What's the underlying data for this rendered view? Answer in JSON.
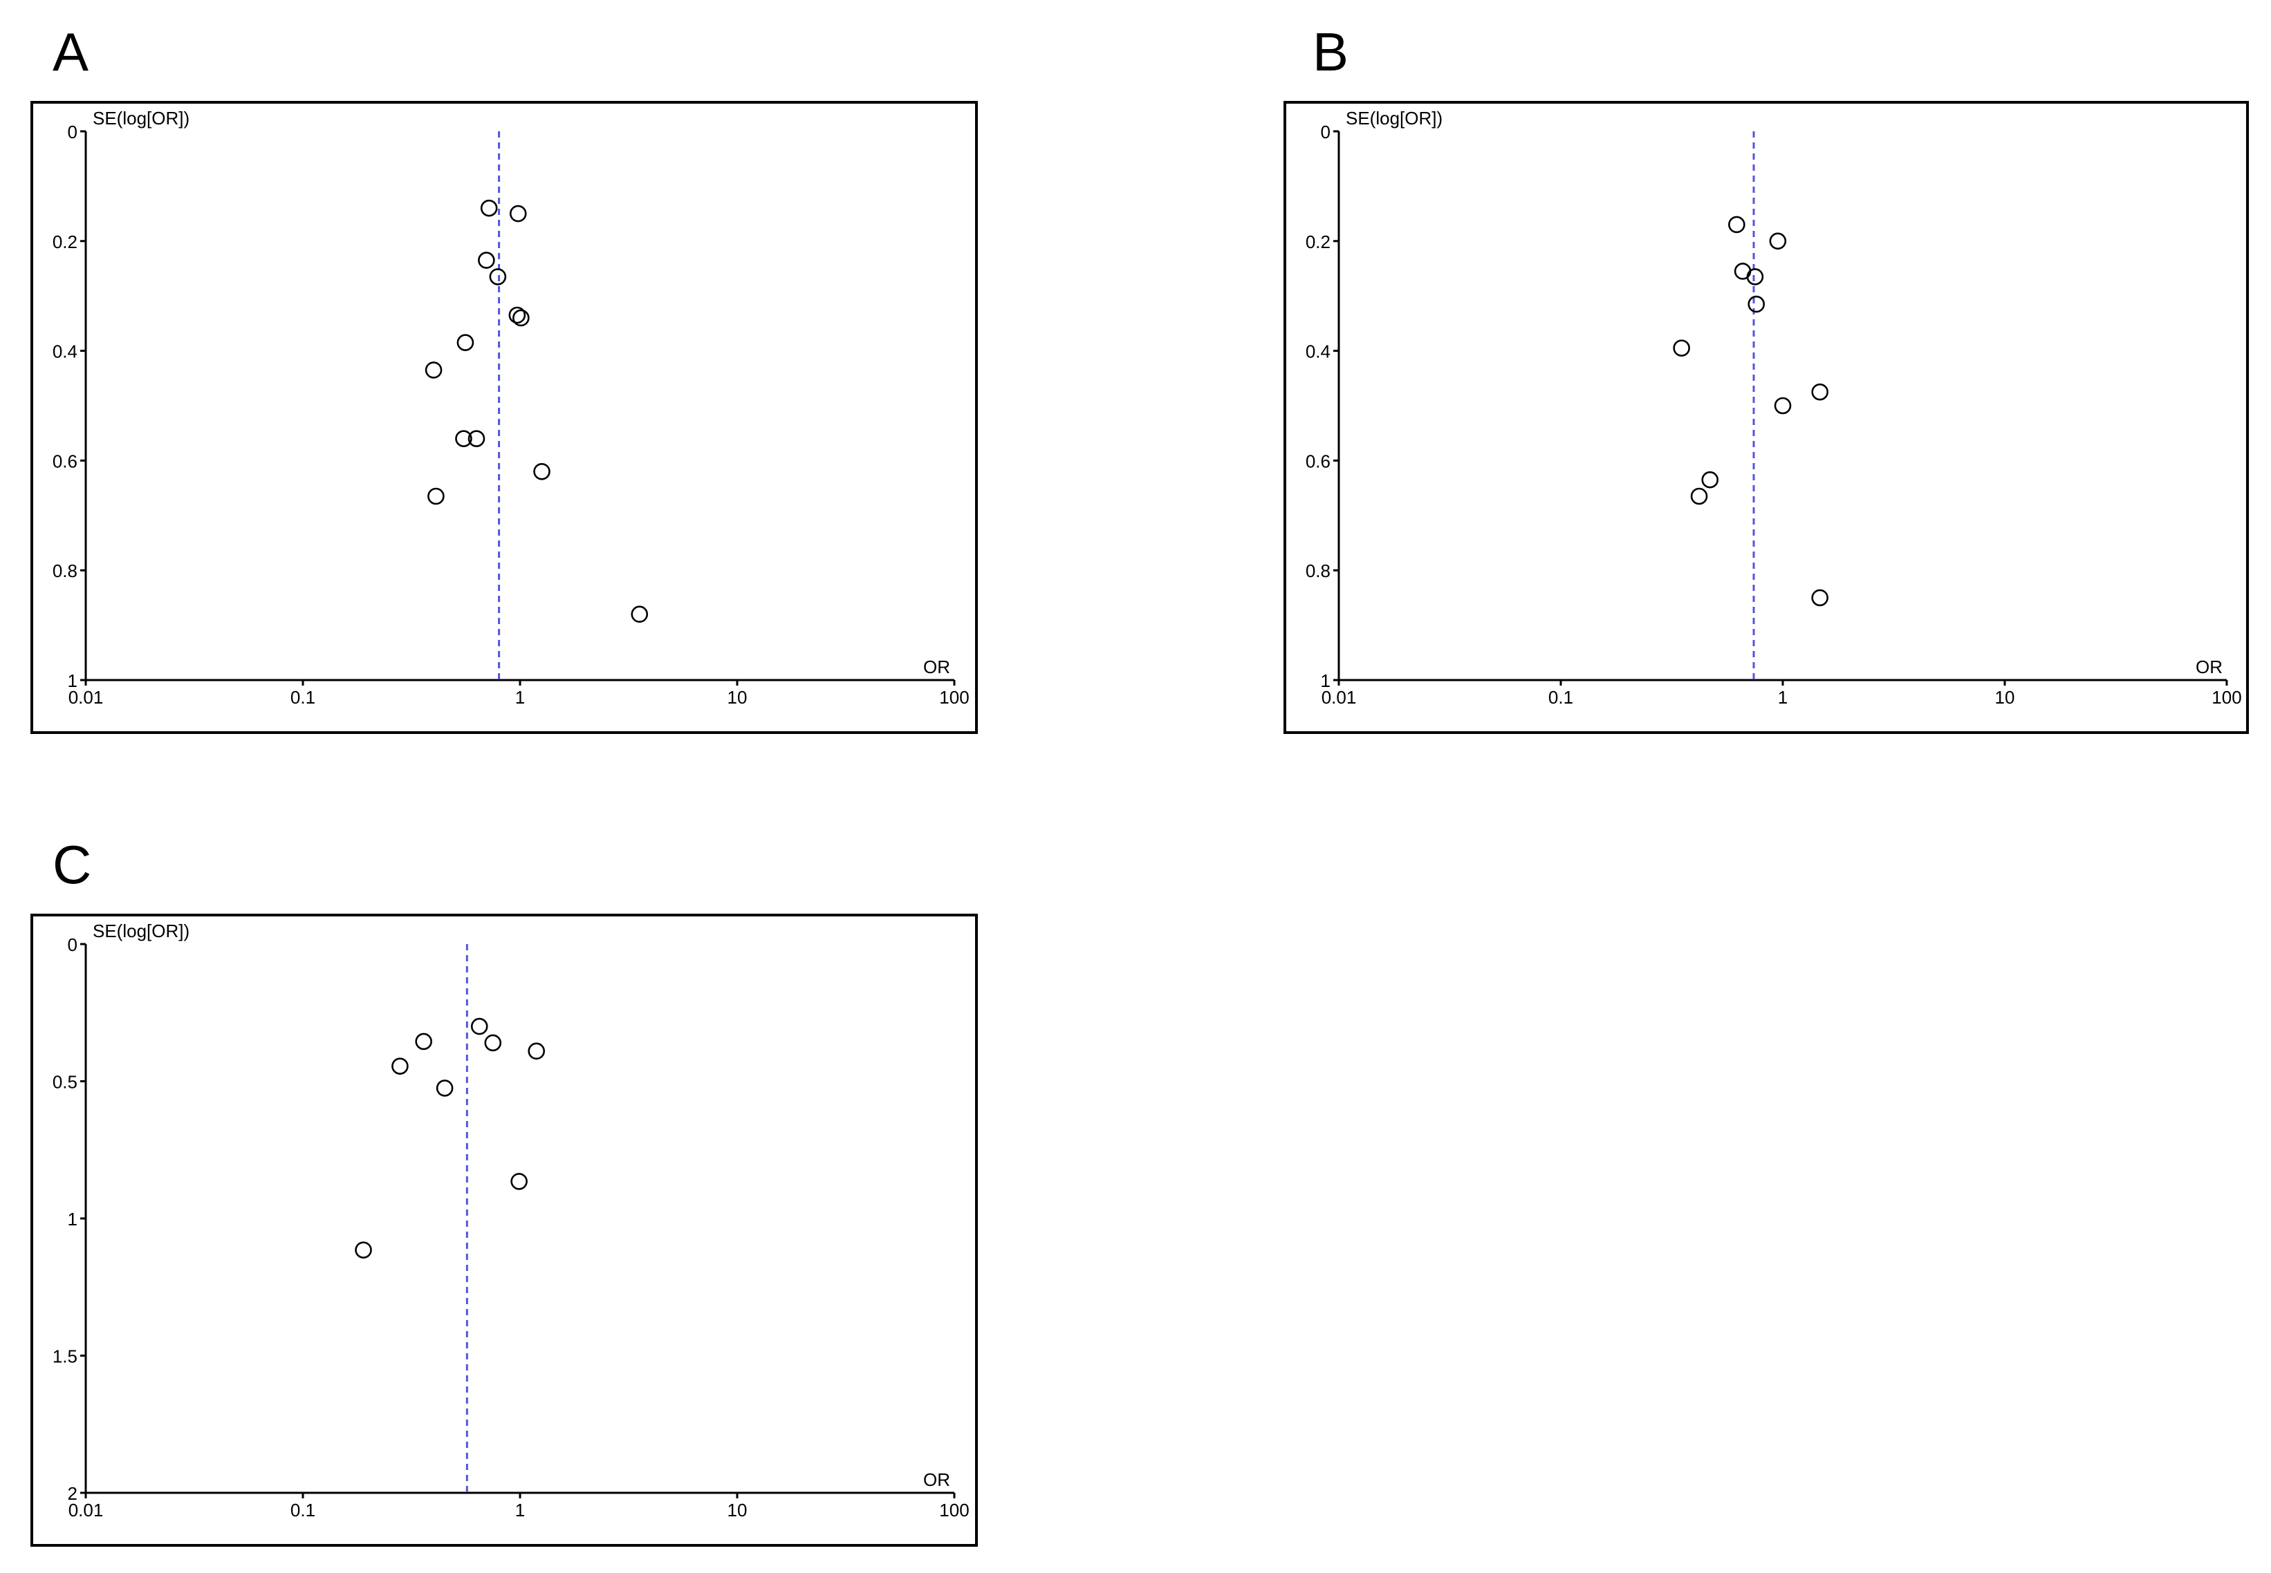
{
  "chart_data": [
    {
      "type": "scatter",
      "panel_label": "A",
      "ylabel": "SE(log[OR])",
      "xlabel": "OR",
      "x_scale": "log",
      "xlim": [
        0.01,
        100
      ],
      "ylim": [
        0,
        1
      ],
      "y_reversed": true,
      "x_ticks": [
        "0.01",
        "0.1",
        "1",
        "10",
        "100"
      ],
      "y_ticks": [
        "0",
        "0.2",
        "0.4",
        "0.6",
        "0.8",
        "1"
      ],
      "x_tick_values": [
        0.01,
        0.1,
        1,
        10,
        100
      ],
      "y_tick_values": [
        0,
        0.2,
        0.4,
        0.6,
        0.8,
        1
      ],
      "pooled_or": 0.8,
      "points": [
        {
          "x": 0.72,
          "y": 0.14
        },
        {
          "x": 0.98,
          "y": 0.15
        },
        {
          "x": 0.7,
          "y": 0.235
        },
        {
          "x": 0.79,
          "y": 0.265
        },
        {
          "x": 0.97,
          "y": 0.335
        },
        {
          "x": 1.01,
          "y": 0.34
        },
        {
          "x": 0.56,
          "y": 0.385
        },
        {
          "x": 0.4,
          "y": 0.435
        },
        {
          "x": 0.55,
          "y": 0.56
        },
        {
          "x": 0.63,
          "y": 0.56
        },
        {
          "x": 1.26,
          "y": 0.62
        },
        {
          "x": 0.41,
          "y": 0.665
        },
        {
          "x": 3.55,
          "y": 0.88
        }
      ],
      "colors": {
        "marker": "#000000",
        "pooled_line": "#5555dd"
      }
    },
    {
      "type": "scatter",
      "panel_label": "B",
      "ylabel": "SE(log[OR])",
      "xlabel": "OR",
      "x_scale": "log",
      "xlim": [
        0.01,
        100
      ],
      "ylim": [
        0,
        1
      ],
      "y_reversed": true,
      "x_ticks": [
        "0.01",
        "0.1",
        "1",
        "10",
        "100"
      ],
      "y_ticks": [
        "0",
        "0.2",
        "0.4",
        "0.6",
        "0.8",
        "1"
      ],
      "x_tick_values": [
        0.01,
        0.1,
        1,
        10,
        100
      ],
      "y_tick_values": [
        0,
        0.2,
        0.4,
        0.6,
        0.8,
        1
      ],
      "pooled_or": 0.74,
      "points": [
        {
          "x": 0.62,
          "y": 0.17
        },
        {
          "x": 0.95,
          "y": 0.2
        },
        {
          "x": 0.66,
          "y": 0.255
        },
        {
          "x": 0.75,
          "y": 0.265
        },
        {
          "x": 0.76,
          "y": 0.315
        },
        {
          "x": 0.35,
          "y": 0.395
        },
        {
          "x": 1.47,
          "y": 0.475
        },
        {
          "x": 1.0,
          "y": 0.5
        },
        {
          "x": 0.47,
          "y": 0.635
        },
        {
          "x": 0.42,
          "y": 0.665
        },
        {
          "x": 1.47,
          "y": 0.85
        }
      ],
      "colors": {
        "marker": "#000000",
        "pooled_line": "#5555dd"
      }
    },
    {
      "type": "scatter",
      "panel_label": "C",
      "ylabel": "SE(log[OR])",
      "xlabel": "OR",
      "x_scale": "log",
      "xlim": [
        0.01,
        100
      ],
      "ylim": [
        0,
        2
      ],
      "y_reversed": true,
      "x_ticks": [
        "0.01",
        "0.1",
        "1",
        "10",
        "100"
      ],
      "y_ticks": [
        "0",
        "0.5",
        "1",
        "1.5",
        "2"
      ],
      "x_tick_values": [
        0.01,
        0.1,
        1,
        10,
        100
      ],
      "y_tick_values": [
        0,
        0.5,
        1,
        1.5,
        2
      ],
      "pooled_or": 0.57,
      "points": [
        {
          "x": 0.65,
          "y": 0.3
        },
        {
          "x": 0.36,
          "y": 0.355
        },
        {
          "x": 0.75,
          "y": 0.36
        },
        {
          "x": 1.19,
          "y": 0.39
        },
        {
          "x": 0.28,
          "y": 0.445
        },
        {
          "x": 0.45,
          "y": 0.525
        },
        {
          "x": 0.99,
          "y": 0.865
        },
        {
          "x": 0.19,
          "y": 1.115
        }
      ],
      "colors": {
        "marker": "#000000",
        "pooled_line": "#5555dd"
      }
    }
  ]
}
